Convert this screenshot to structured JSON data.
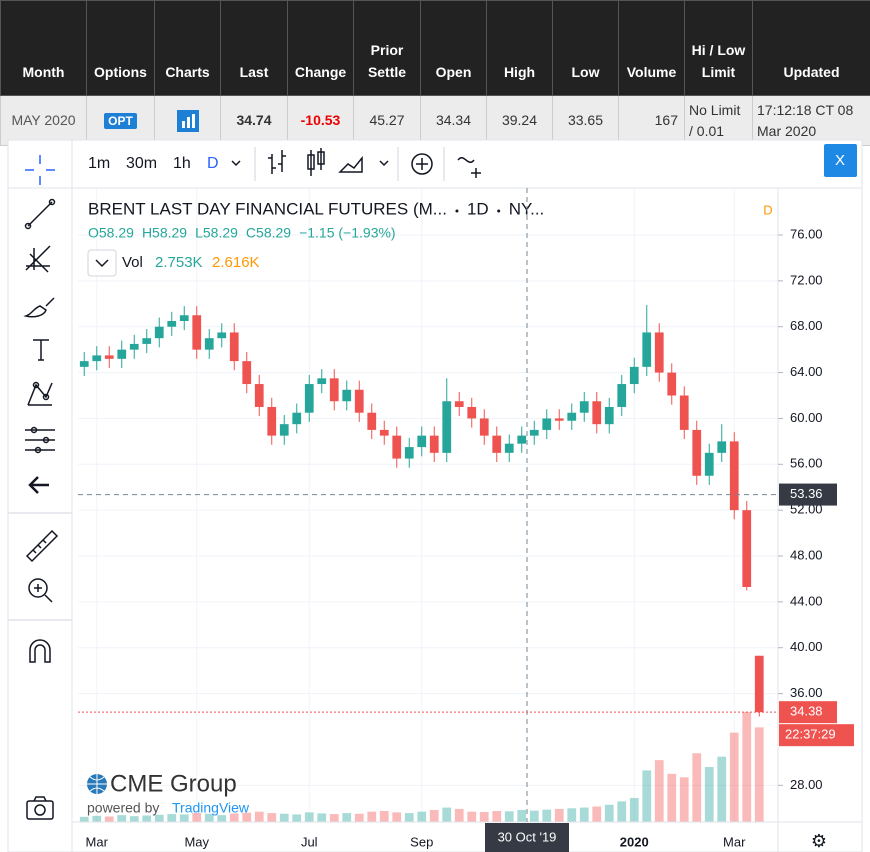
{
  "table": {
    "headers": [
      "Month",
      "Options",
      "Charts",
      "Last",
      "Change",
      "Prior Settle",
      "Open",
      "High",
      "Low",
      "Volume",
      "Hi / Low Limit",
      "Updated"
    ],
    "row": {
      "month": "MAY 2020",
      "options": "OPT",
      "last": "34.74",
      "change": "-10.53",
      "prior_settle": "45.27",
      "open": "34.34",
      "high": "39.24",
      "low": "33.65",
      "volume": "167",
      "limit": "No Limit / 0.01",
      "updated": "17:12:18 CT 08 Mar 2020"
    }
  },
  "toolbar": {
    "intervals": [
      "1m",
      "30m",
      "1h",
      "D"
    ],
    "close": "X"
  },
  "logo": {
    "name": "CME Group",
    "powered": "powered by",
    "provider": "TradingView"
  },
  "chart_data": {
    "type": "candlestick",
    "title": "BRENT LAST DAY FINANCIAL FUTURES (M...",
    "interval": "1D",
    "exchange": "NY...",
    "badge": "D",
    "ohlc": [
      "O58.29",
      "H58.29",
      "L58.29",
      "C58.29",
      "−1.15 (−1.93%)"
    ],
    "volume_label": "Vol",
    "volume_values": [
      "2.753K",
      "2.616K"
    ],
    "up_color": "#26a69a",
    "down_color": "#ef5350",
    "categories": [
      null,
      "Mar",
      null,
      null,
      null,
      null,
      null,
      null,
      null,
      "May",
      null,
      null,
      null,
      null,
      null,
      null,
      null,
      null,
      "Jul",
      null,
      null,
      null,
      null,
      null,
      null,
      null,
      null,
      "Sep",
      null,
      null,
      null,
      null,
      null,
      null,
      null,
      null,
      null,
      null,
      null,
      null,
      null,
      null,
      null,
      null,
      "2020",
      null,
      null,
      null,
      null,
      null,
      null,
      null,
      "Mar",
      null,
      null
    ],
    "open": [
      64.5,
      65.0,
      65.5,
      65.2,
      66.0,
      66.5,
      67.0,
      68.0,
      68.5,
      69.0,
      66.0,
      67.0,
      67.5,
      65.0,
      63.0,
      61.0,
      58.5,
      59.5,
      60.5,
      63.0,
      63.5,
      61.5,
      62.5,
      60.5,
      59.0,
      58.5,
      56.5,
      57.5,
      58.5,
      57.0,
      61.5,
      61.0,
      60.0,
      58.5,
      57.0,
      57.8,
      58.5,
      59.0,
      60.0,
      59.8,
      60.5,
      61.5,
      59.5,
      61.0,
      63.0,
      64.5,
      67.5,
      64.0,
      62.0,
      59.0,
      55.0,
      57.0,
      58.0,
      52.0,
      39.3
    ],
    "high": [
      65.8,
      66.3,
      66.3,
      66.8,
      67.3,
      67.8,
      68.8,
      69.3,
      69.8,
      69.8,
      67.8,
      68.3,
      68.3,
      65.8,
      63.8,
      61.8,
      60.3,
      61.3,
      63.8,
      64.3,
      64.3,
      63.3,
      63.3,
      61.3,
      59.8,
      59.3,
      58.3,
      59.3,
      59.3,
      63.5,
      62.3,
      61.8,
      60.8,
      59.3,
      58.6,
      59.3,
      59.8,
      60.8,
      60.8,
      61.3,
      62.3,
      62.3,
      61.8,
      63.8,
      65.3,
      69.9,
      68.3,
      64.8,
      62.8,
      59.8,
      57.8,
      59.5,
      58.8,
      52.8,
      39.3
    ],
    "low": [
      63.7,
      64.2,
      64.4,
      64.4,
      65.2,
      65.7,
      66.2,
      67.2,
      67.7,
      65.2,
      65.2,
      66.2,
      64.2,
      62.2,
      60.2,
      57.7,
      57.7,
      58.7,
      59.7,
      62.2,
      60.7,
      60.7,
      59.7,
      58.2,
      57.7,
      55.7,
      55.7,
      56.7,
      56.2,
      56.2,
      60.2,
      59.2,
      57.7,
      56.2,
      56.2,
      57.0,
      57.7,
      58.2,
      59.0,
      59.0,
      59.7,
      58.7,
      58.7,
      60.2,
      62.2,
      63.7,
      63.2,
      61.2,
      58.2,
      54.2,
      54.2,
      56.2,
      51.2,
      45.0,
      34.0
    ],
    "close": [
      65.0,
      65.5,
      65.2,
      66.0,
      66.5,
      67.0,
      68.0,
      68.5,
      69.0,
      66.0,
      67.0,
      67.5,
      65.0,
      63.0,
      61.0,
      58.5,
      59.5,
      60.5,
      63.0,
      63.5,
      61.5,
      62.5,
      60.5,
      59.0,
      58.5,
      56.5,
      57.5,
      58.5,
      57.0,
      61.5,
      61.0,
      60.0,
      58.5,
      57.0,
      57.8,
      58.5,
      59.0,
      60.0,
      59.8,
      60.5,
      61.5,
      59.5,
      61.0,
      63.0,
      64.5,
      67.5,
      64.0,
      62.0,
      59.0,
      55.0,
      57.0,
      58.0,
      52.0,
      45.3,
      34.38
    ],
    "volume": [
      150,
      180,
      160,
      200,
      170,
      190,
      210,
      230,
      220,
      260,
      240,
      200,
      250,
      270,
      300,
      260,
      240,
      220,
      280,
      250,
      230,
      260,
      240,
      300,
      320,
      280,
      260,
      300,
      350,
      420,
      380,
      300,
      290,
      320,
      310,
      350,
      330,
      360,
      380,
      400,
      420,
      450,
      500,
      600,
      700,
      1500,
      1800,
      1400,
      1300,
      2000,
      1600,
      1900,
      2600,
      3200,
      2753
    ],
    "ylim": [
      24.8,
      80.1
    ],
    "yticks": [
      {
        "value": 28,
        "label": "28.00"
      },
      {
        "value": 36,
        "label": "36.00"
      },
      {
        "value": 40,
        "label": "40.00"
      },
      {
        "value": 44,
        "label": "44.00"
      },
      {
        "value": 48,
        "label": "48.00"
      },
      {
        "value": 52,
        "label": "52.00"
      },
      {
        "value": 56,
        "label": "56.00"
      },
      {
        "value": 60,
        "label": "60.00"
      },
      {
        "value": 64,
        "label": "64.00"
      },
      {
        "value": 68,
        "label": "68.00"
      },
      {
        "value": 72,
        "label": "72.00"
      },
      {
        "value": 76,
        "label": "76.00"
      }
    ],
    "grid": true,
    "crosshair": {
      "price": 53.36,
      "price_label": "53.36",
      "date_label": "30 Oct '19"
    },
    "last_price": {
      "value": 34.38,
      "label": "34.38",
      "countdown": "22:37:29"
    }
  }
}
